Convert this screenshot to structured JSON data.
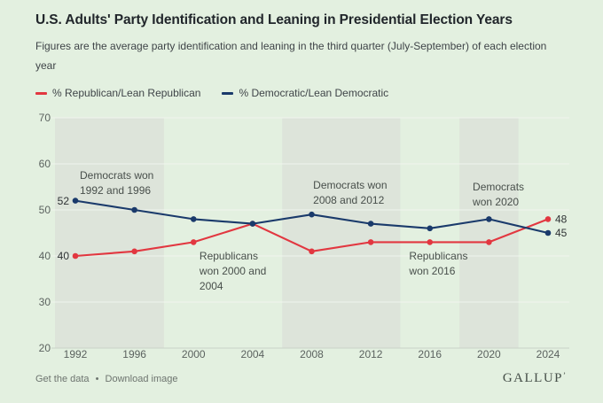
{
  "header": {
    "title": "U.S. Adults' Party Identification and Leaning in Presidential Election Years",
    "subtitle": "Figures are the average party identification and leaning in the third quarter (July-September) of each election year"
  },
  "chart_data": {
    "type": "line",
    "x": [
      1992,
      1996,
      2000,
      2004,
      2008,
      2012,
      2016,
      2020,
      2024
    ],
    "series": [
      {
        "name": "% Republican/Lean Republican",
        "color": "#e23740",
        "values": [
          40,
          41,
          43,
          47,
          41,
          43,
          43,
          43,
          48
        ],
        "start_label": "40",
        "end_label": "48"
      },
      {
        "name": "% Democratic/Lean Democratic",
        "color": "#1a3a6b",
        "values": [
          52,
          50,
          48,
          47,
          49,
          47,
          46,
          48,
          45
        ],
        "start_label": "52",
        "end_label": "45"
      }
    ],
    "ylim": [
      20,
      70
    ],
    "yticks": [
      70,
      60,
      50,
      40,
      30,
      20
    ],
    "grid": true,
    "legend_position": "top",
    "band_color": "#dde4da",
    "bands": [
      {
        "from_year": 1990.6,
        "to_year": 1998
      },
      {
        "from_year": 2006,
        "to_year": 2014
      },
      {
        "from_year": 2018,
        "to_year": 2022
      }
    ],
    "annotations": [
      {
        "year": 1992.3,
        "value": 56.7,
        "lines": [
          "Democrats won",
          "1992 and 1996"
        ]
      },
      {
        "year": 2000.4,
        "value": 39.2,
        "lines": [
          "Republicans",
          "won 2000 and",
          "2004"
        ]
      },
      {
        "year": 2008.1,
        "value": 54.6,
        "lines": [
          "Democrats won",
          "2008 and 2012"
        ]
      },
      {
        "year": 2014.6,
        "value": 39.2,
        "lines": [
          "Republicans",
          "won 2016"
        ]
      },
      {
        "year": 2018.9,
        "value": 54.2,
        "lines": [
          "Democrats",
          "won 2020"
        ]
      }
    ]
  },
  "footer": {
    "link1": "Get the data",
    "separator": "•",
    "link2": "Download image",
    "brand": "GALLUP",
    "brand_mark": "’"
  }
}
